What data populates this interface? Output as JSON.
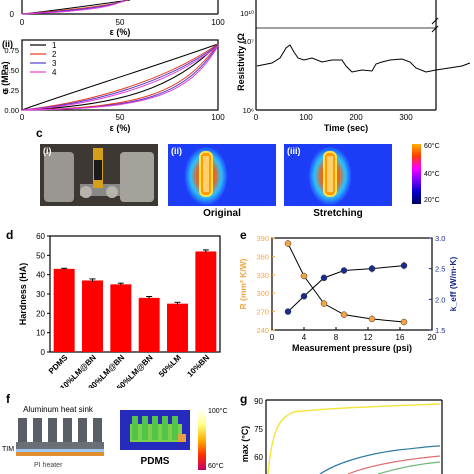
{
  "panel_a": {
    "top_strip": {
      "x_ticks": [
        "0",
        "50",
        "100"
      ],
      "y_tick": "0",
      "xlabel": "ε (%)"
    },
    "sub_label": "(ii)",
    "ylabel": "σ (MPa)",
    "xlabel": "ε (%)",
    "x_ticks": [
      "0",
      "50",
      "100"
    ],
    "y_ticks": [
      "0.00",
      "0.25",
      "0.50",
      "0.75"
    ],
    "legend": [
      "1",
      "2",
      "3",
      "4"
    ],
    "colors": [
      "#000000",
      "#e8361e",
      "#4f3ccf",
      "#e43ad8"
    ]
  },
  "panel_b": {
    "ylabel": "Resistivity (Ω",
    "xlabel": "Time (sec)",
    "y_ticks": [
      "10¹⁰",
      "10⁷",
      "10⁶"
    ],
    "x_ticks": [
      "0",
      "100",
      "200",
      "300"
    ]
  },
  "panel_c": {
    "label": "c",
    "photo_labels": [
      "(i)",
      "(ii)",
      "(iii)"
    ],
    "captions": [
      "Original",
      "Stretching"
    ],
    "colorbar_ticks": [
      "60°C",
      "40°C",
      "20°C"
    ]
  },
  "panel_d": {
    "label": "d",
    "chart_data": {
      "type": "bar",
      "categories": [
        "PDMS",
        "10%LM@BN",
        "30%LM@BN",
        "50%LM@BN",
        "50%LM",
        "10%BN"
      ],
      "values": [
        43,
        37,
        35,
        28,
        25,
        52
      ],
      "errors": [
        0.3,
        0.8,
        0.6,
        0.7,
        0.7,
        0.8
      ],
      "ylabel": "Hardness (HA)",
      "ylim": [
        0,
        60
      ],
      "y_ticks": [
        "0",
        "10",
        "20",
        "30",
        "40",
        "50",
        "60"
      ],
      "color": "#ff0000"
    }
  },
  "panel_e": {
    "label": "e",
    "chart_data": {
      "type": "line",
      "x": [
        2,
        4,
        6.5,
        9,
        12.5,
        16.5
      ],
      "xlabel": "Measurement pressure (psi)",
      "x_ticks": [
        "0",
        "4",
        "8",
        "12",
        "16",
        "20"
      ],
      "xlim": [
        0,
        20
      ],
      "series": [
        {
          "values": [
            381,
            328,
            283,
            265,
            258,
            253
          ],
          "errors": [
            6,
            5,
            5,
            5,
            5,
            5
          ],
          "color": "#f5a442"
        },
        {
          "values": [
            1.8,
            2.05,
            2.35,
            2.47,
            2.5,
            2.55
          ],
          "errors": [
            0.04,
            0.04,
            0.05,
            0.05,
            0.06,
            0.06
          ],
          "color": "#1b2a8f"
        }
      ],
      "ylabel_left": "R (mm² K/W)",
      "ylim_left": [
        240,
        390
      ],
      "y_ticks_left": [
        "240",
        "270",
        "300",
        "330",
        "360",
        "390"
      ],
      "ylabel_right": "k_eff (W/m·K)",
      "ylim_right": [
        1.5,
        3.0
      ],
      "y_ticks_right": [
        "1.5",
        "2.0",
        "2.5",
        "3.0"
      ]
    }
  },
  "panel_f": {
    "label": "f",
    "heat_sink_label": "Aluminum heat sink",
    "tim_label": "TIM",
    "heater_label": "PI heater",
    "sample_label": "PDMS",
    "colorbar_ticks": [
      "100°C",
      "60°C"
    ]
  },
  "panel_g": {
    "label": "g",
    "y_ticks": [
      "90",
      "75",
      "60"
    ],
    "ylabel": "max (°C)"
  }
}
